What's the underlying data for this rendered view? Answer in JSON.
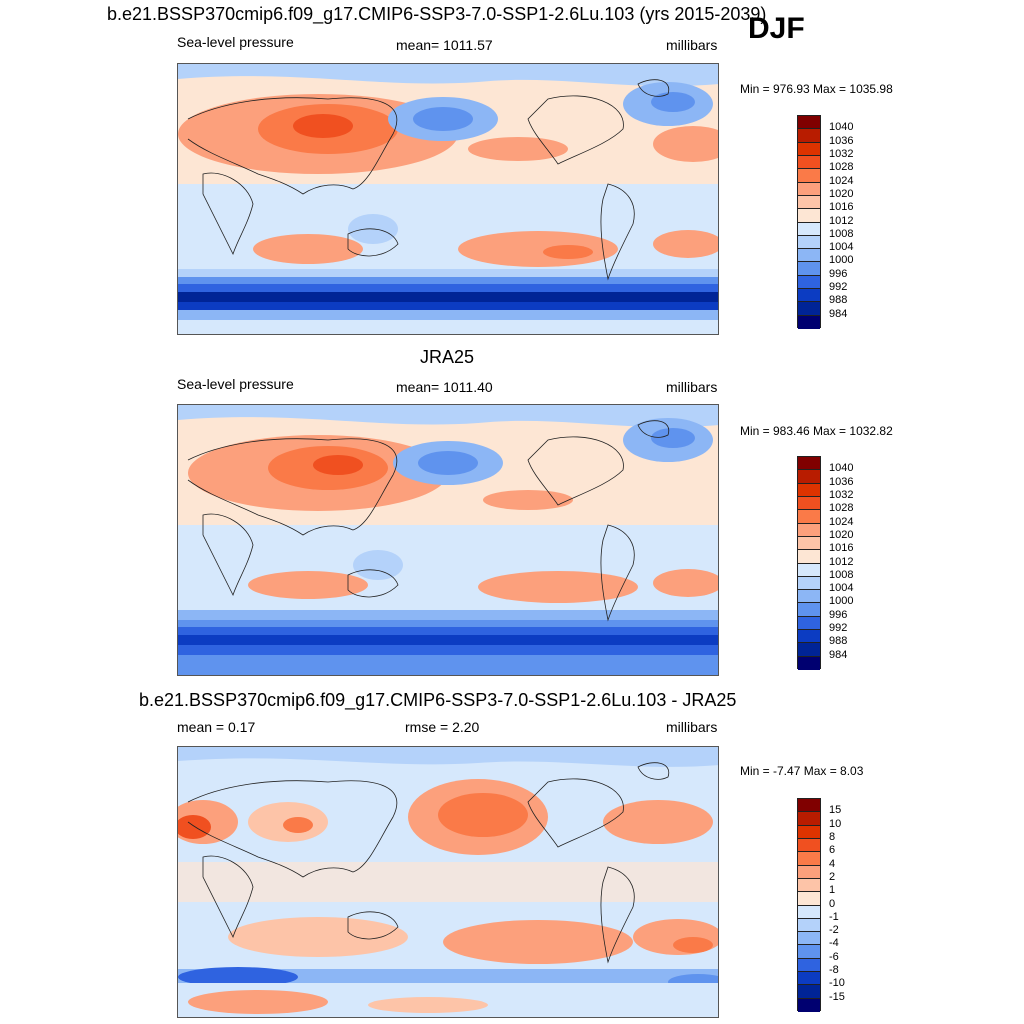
{
  "header": {
    "case_title": "b.e21.BSSP370cmip6.f09_g17.CMIP6-SSP3-7.0-SSP1-2.6Lu.103 (yrs 2015-2039)",
    "season": "DJF"
  },
  "panels": [
    {
      "name": "model",
      "title": "",
      "left_label": "Sea-level pressure",
      "center_label": "mean= 1011.57",
      "right_label": "millibars",
      "minmax": "Min = 976.93 Max = 1035.98"
    },
    {
      "name": "obs",
      "title": "JRA25",
      "left_label": "Sea-level pressure",
      "center_label": "mean= 1011.40",
      "right_label": "millibars",
      "minmax": "Min = 983.46 Max = 1032.82"
    },
    {
      "name": "diff",
      "title": "b.e21.BSSP370cmip6.f09_g17.CMIP6-SSP3-7.0-SSP1-2.6Lu.103 - JRA25",
      "left_label": "mean =   0.17",
      "center_label": "rmse =   2.20",
      "right_label": "millibars",
      "minmax": "Min =  -7.47 Max =   8.03"
    }
  ],
  "colorbar_abs": {
    "labels": [
      "1040",
      "1036",
      "1032",
      "1028",
      "1024",
      "1020",
      "1016",
      "1012",
      "1008",
      "1004",
      "1000",
      "996",
      "992",
      "988",
      "984"
    ],
    "colors": [
      "#800000",
      "#b81c00",
      "#dd3300",
      "#f05020",
      "#fa7a48",
      "#fca07c",
      "#fdc4a8",
      "#fde6d4",
      "#d6e8fc",
      "#b4d2fa",
      "#8cb6f5",
      "#5f93ee",
      "#2f63e0",
      "#0c3cc2",
      "#002496",
      "#000070"
    ]
  },
  "colorbar_diff": {
    "labels": [
      "15",
      "10",
      "8",
      "6",
      "4",
      "2",
      "1",
      "0",
      "-1",
      "-2",
      "-4",
      "-6",
      "-8",
      "-10",
      "-15"
    ],
    "colors": [
      "#800000",
      "#b81c00",
      "#dd3300",
      "#f05020",
      "#fa7a48",
      "#fca07c",
      "#fdc4a8",
      "#fde6d4",
      "#d6e8fc",
      "#b4d2fa",
      "#8cb6f5",
      "#5f93ee",
      "#2f63e0",
      "#0c3cc2",
      "#002496",
      "#000070"
    ]
  }
}
